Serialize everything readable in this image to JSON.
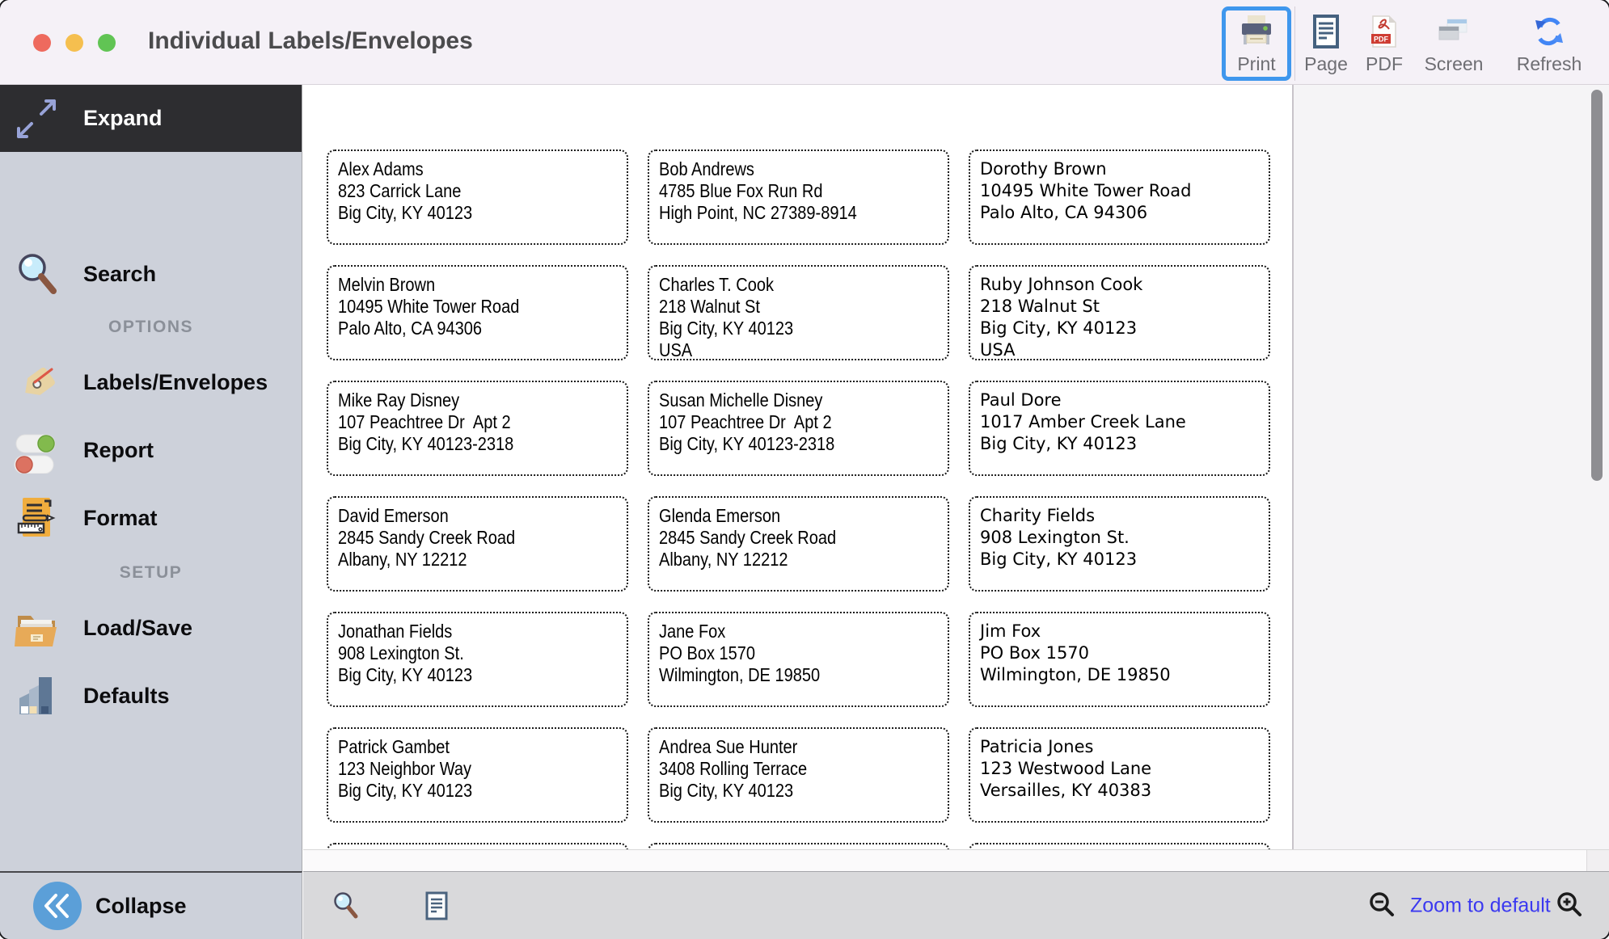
{
  "window": {
    "title": "Individual Labels/Envelopes"
  },
  "toolbar": {
    "buttons": [
      {
        "label": "Print",
        "active": true
      },
      {
        "label": "Page",
        "active": false
      },
      {
        "label": "PDF",
        "active": false
      },
      {
        "label": "Screen",
        "active": false
      },
      {
        "label": "Refresh",
        "active": false
      }
    ]
  },
  "sidebar": {
    "expand_label": "Expand",
    "search_label": "Search",
    "options_header": "OPTIONS",
    "options_items": [
      "Labels/Envelopes",
      "Report",
      "Format"
    ],
    "setup_header": "SETUP",
    "setup_items": [
      "Load/Save",
      "Defaults"
    ],
    "collapse_label": "Collapse"
  },
  "labels": {
    "items": [
      {
        "lines": [
          "Alex Adams",
          "823 Carrick Lane",
          "Big City, KY 40123"
        ]
      },
      {
        "lines": [
          "Bob Andrews",
          "4785 Blue Fox Run Rd",
          "High Point, NC 27389-8914"
        ]
      },
      {
        "lines": [
          "Dorothy Brown",
          "10495 White Tower Road",
          "Palo Alto, CA 94306"
        ]
      },
      {
        "lines": [
          "Melvin Brown",
          "10495 White Tower Road",
          "Palo Alto, CA 94306"
        ]
      },
      {
        "lines": [
          "Charles T. Cook",
          "218 Walnut St",
          "Big City, KY 40123",
          "USA"
        ]
      },
      {
        "lines": [
          "Ruby Johnson Cook",
          "218 Walnut St",
          "Big City, KY 40123",
          "USA"
        ]
      },
      {
        "lines": [
          "Mike Ray Disney",
          "107 Peachtree Dr  Apt 2",
          "Big City, KY 40123-2318"
        ]
      },
      {
        "lines": [
          "Susan Michelle Disney",
          "107 Peachtree Dr  Apt 2",
          "Big City, KY 40123-2318"
        ]
      },
      {
        "lines": [
          "Paul Dore",
          "1017 Amber Creek Lane",
          "Big City, KY 40123"
        ]
      },
      {
        "lines": [
          "David Emerson",
          "2845 Sandy Creek Road",
          "Albany, NY 12212"
        ]
      },
      {
        "lines": [
          "Glenda Emerson",
          "2845 Sandy Creek Road",
          "Albany, NY 12212"
        ]
      },
      {
        "lines": [
          "Charity Fields",
          "908 Lexington St.",
          "Big City, KY 40123"
        ]
      },
      {
        "lines": [
          "Jonathan Fields",
          "908 Lexington St.",
          "Big City, KY 40123"
        ]
      },
      {
        "lines": [
          "Jane Fox",
          "PO Box 1570",
          "Wilmington, DE 19850"
        ]
      },
      {
        "lines": [
          "Jim Fox",
          "PO Box 1570",
          "Wilmington, DE 19850"
        ]
      },
      {
        "lines": [
          "Patrick Gambet",
          "123 Neighbor Way",
          "Big City, KY 40123"
        ]
      },
      {
        "lines": [
          "Andrea Sue Hunter",
          "3408 Rolling Terrace",
          "Big City, KY 40123"
        ]
      },
      {
        "lines": [
          "Patricia Jones",
          "123 Westwood Lane",
          "Versailles, KY 40383"
        ]
      }
    ]
  },
  "statusbar": {
    "zoom_label": "Zoom to default"
  },
  "colors": {
    "print_highlight": "#3f97ed",
    "zoom_link_blue": "#3b39f0",
    "traffic_red": "#ee6a5e",
    "traffic_yellow": "#f5bf4f",
    "traffic_green": "#61c454",
    "sidebar_bg": "#cdd1da",
    "expand_row_bg": "#2d2d30"
  }
}
